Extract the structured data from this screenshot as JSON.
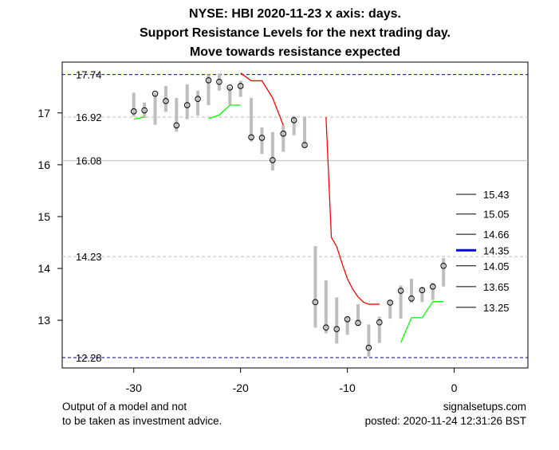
{
  "chart_data": {
    "type": "line",
    "title": [
      "NYSE: HBI 2020-11-23 x axis: days.",
      "Support Resistance Levels for the next trading day.",
      "Move towards resistance expected"
    ],
    "xlabel": "",
    "ylabel": "",
    "xlim": [
      -36.7,
      6.9
    ],
    "ylim": [
      12.08,
      17.98
    ],
    "x_ticks": [
      -30,
      -20,
      -10,
      0
    ],
    "y_ticks": [
      13,
      14,
      15,
      16,
      17
    ],
    "bars": {
      "x": [
        -30,
        -29,
        -28,
        -27,
        -26,
        -25,
        -24,
        -23,
        -22,
        -21,
        -20,
        -19,
        -18,
        -17,
        -16,
        -15,
        -14,
        -13,
        -12,
        -11,
        -10,
        -9,
        -8,
        -7,
        -6,
        -5,
        -4,
        -3,
        -2,
        -1
      ],
      "high": [
        17.39,
        17.2,
        17.39,
        17.52,
        17.29,
        17.55,
        17.43,
        17.74,
        17.76,
        17.5,
        17.62,
        17.29,
        16.72,
        16.63,
        16.76,
        16.94,
        16.93,
        14.43,
        13.77,
        13.44,
        13.07,
        13.31,
        12.92,
        13.07,
        13.39,
        13.67,
        13.8,
        13.65,
        13.72,
        14.2
      ],
      "low": [
        16.93,
        16.91,
        16.77,
        17.02,
        16.64,
        16.88,
        16.95,
        17.15,
        17.43,
        17.16,
        17.31,
        16.45,
        16.21,
        15.89,
        16.25,
        16.57,
        16.33,
        12.86,
        12.75,
        12.55,
        12.72,
        12.89,
        12.3,
        12.56,
        13.03,
        13.03,
        13.34,
        13.35,
        13.39,
        13.65
      ],
      "close": [
        17.03,
        17.05,
        17.37,
        17.23,
        16.76,
        17.15,
        17.27,
        17.63,
        17.6,
        17.49,
        17.52,
        16.53,
        16.52,
        16.09,
        16.6,
        16.86,
        16.38,
        13.35,
        12.86,
        12.83,
        13.02,
        12.95,
        12.47,
        12.96,
        13.34,
        13.57,
        13.42,
        13.58,
        13.65,
        14.05
      ]
    },
    "resistance_segments": [
      {
        "x": [
          -20,
          -19,
          -18,
          -17,
          -16
        ],
        "y": [
          17.77,
          17.62,
          17.62,
          17.29,
          16.76
        ]
      },
      {
        "x": [
          -12,
          -11.5,
          -11,
          -10.5,
          -10,
          -9.5,
          -9,
          -8.5,
          -8,
          -7
        ],
        "y": [
          16.92,
          14.6,
          14.42,
          14.1,
          13.8,
          13.6,
          13.45,
          13.35,
          13.31,
          13.31
        ]
      }
    ],
    "support_segments": [
      {
        "x": [
          -30,
          -29
        ],
        "y": [
          16.88,
          16.92
        ]
      },
      {
        "x": [
          -23,
          -22,
          -21,
          -20
        ],
        "y": [
          16.89,
          16.96,
          17.15,
          17.15
        ]
      },
      {
        "x": [
          -5,
          -4,
          -3,
          -2,
          -1
        ],
        "y": [
          12.57,
          13.05,
          13.05,
          13.36,
          13.36
        ]
      }
    ],
    "hlines": [
      {
        "value": 17.74,
        "label": "17.74",
        "color": "#0000ff",
        "dash": true
      },
      {
        "value": 16.92,
        "label": "16.92",
        "color": "#bebebe",
        "dash": true
      },
      {
        "value": 16.08,
        "label": "16.08",
        "color": "#bebebe",
        "dash": false
      },
      {
        "value": 14.23,
        "label": "14.23",
        "color": "#bebebe",
        "dash": true
      },
      {
        "value": 12.28,
        "label": "12.28",
        "color": "#000080",
        "dash": true
      }
    ],
    "levels": [
      {
        "value": 15.43,
        "label": "15.43",
        "highlight": false
      },
      {
        "value": 15.05,
        "label": "15.05",
        "highlight": false
      },
      {
        "value": 14.66,
        "label": "14.66",
        "highlight": false
      },
      {
        "value": 14.35,
        "label": "14.35",
        "highlight": true
      },
      {
        "value": 14.05,
        "label": "14.05",
        "highlight": false
      },
      {
        "value": 13.65,
        "label": "13.65",
        "highlight": false
      },
      {
        "value": 13.25,
        "label": "13.25",
        "highlight": false
      }
    ],
    "colors": {
      "bar": "#bebebe",
      "resistance": "#ff0000",
      "support": "#00ff00",
      "highlight": "#0000ff"
    }
  },
  "footer": {
    "disclaimer_line1": "Output of a model and not",
    "disclaimer_line2": "to be taken as investment advice.",
    "site": "signalsetups.com",
    "posted": "posted: 2020-11-24 12:31:26 BST"
  }
}
